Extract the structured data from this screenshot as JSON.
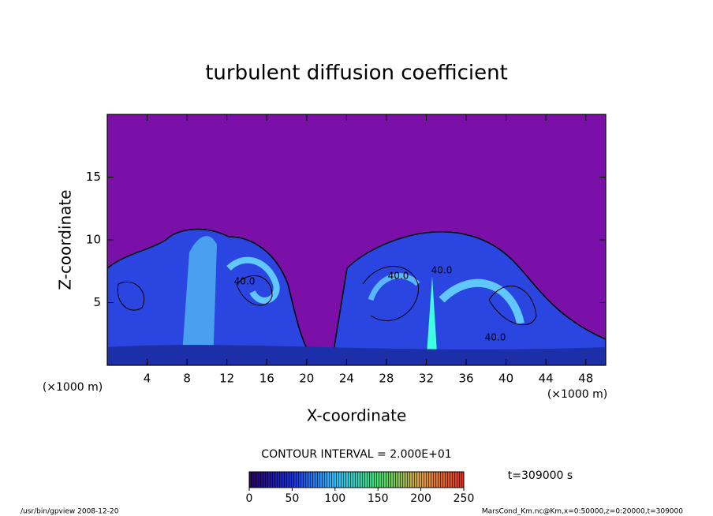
{
  "chart_data": {
    "type": "contour",
    "title": "turbulent diffusion coefficient",
    "xlabel": "X-coordinate",
    "ylabel": "Z-coordinate",
    "x_unit_left": "(×1000 m)",
    "x_unit_right": "(×1000 m)",
    "xlim": [
      0,
      50
    ],
    "xticks": [
      4,
      8,
      12,
      16,
      20,
      24,
      28,
      32,
      36,
      40,
      44,
      48
    ],
    "ylim": [
      0,
      20
    ],
    "yticks": [
      5,
      10,
      15
    ],
    "contour_interval": "CONTOUR INTERVAL = 2.000E+01",
    "contour_labels": [
      {
        "value": 40,
        "label": "40.0"
      },
      {
        "value": 40,
        "label": "40.0"
      },
      {
        "value": 40,
        "label": "40.0"
      },
      {
        "value": 40,
        "label": "40.0"
      }
    ],
    "colorbar_lim": [
      0,
      250
    ],
    "colorbar_ticks": [
      0,
      50,
      100,
      150,
      200,
      250
    ],
    "time_label": "t=309000 s",
    "footer_left": "/usr/bin/gpview  2008-12-20",
    "footer_right": "MarsCond_Km.nc@Km,x=0:50000,z=0:20000,t=309000"
  }
}
